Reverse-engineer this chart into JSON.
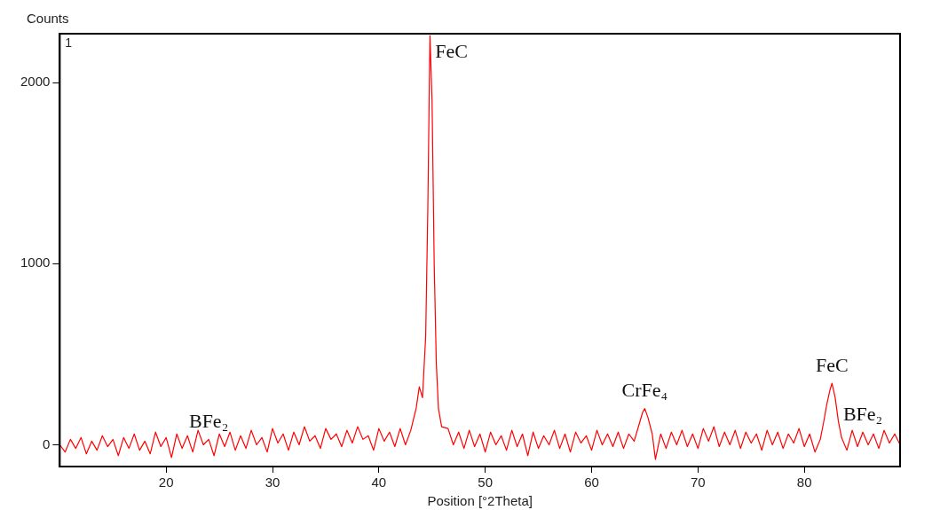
{
  "chart_data": {
    "type": "line",
    "xlabel": "Position [°2Theta]",
    "ylabel": "Counts",
    "annotations": [
      "1",
      {
        "text": "FeC",
        "x": 44.8,
        "y": 2260
      },
      {
        "text": "BFe₂",
        "x": 24,
        "y": 30
      },
      {
        "text": "CrFe₄",
        "x": 65,
        "y": 200
      },
      {
        "text": "FeC",
        "x": 82.6,
        "y": 340
      },
      {
        "text": "BFe₂",
        "x": 85.5,
        "y": 70
      }
    ],
    "xlim": [
      10,
      89
    ],
    "xticks": [
      20,
      30,
      40,
      50,
      60,
      70,
      80
    ],
    "ylim": [
      -120,
      2270
    ],
    "yticks": [
      0,
      1000,
      2000
    ],
    "grid": false,
    "legend": false,
    "marker": "none",
    "line_style": "solid",
    "series": [
      {
        "color": "#ff0000",
        "x": [
          10,
          10.5,
          11,
          11.5,
          12,
          12.5,
          13,
          13.5,
          14,
          14.5,
          15,
          15.5,
          16,
          16.5,
          17,
          17.5,
          18,
          18.5,
          19,
          19.5,
          20,
          20.5,
          21,
          21.5,
          22,
          22.5,
          23,
          23.5,
          24,
          24.5,
          25,
          25.5,
          26,
          26.5,
          27,
          27.5,
          28,
          28.5,
          29,
          29.5,
          30,
          30.5,
          31,
          31.5,
          32,
          32.5,
          33,
          33.5,
          34,
          34.5,
          35,
          35.5,
          36,
          36.5,
          37,
          37.5,
          38,
          38.5,
          39,
          39.5,
          40,
          40.5,
          41,
          41.5,
          42,
          42.5,
          43,
          43.5,
          43.8,
          44.1,
          44.4,
          44.6,
          44.8,
          45,
          45.2,
          45.4,
          45.6,
          45.9,
          46.5,
          47,
          47.5,
          48,
          48.5,
          49,
          49.5,
          50,
          50.5,
          51,
          51.5,
          52,
          52.5,
          53,
          53.5,
          54,
          54.5,
          55,
          55.5,
          56,
          56.5,
          57,
          57.5,
          58,
          58.5,
          59,
          59.5,
          60,
          60.5,
          61,
          61.5,
          62,
          62.5,
          63,
          63.5,
          64,
          64.5,
          64.8,
          65,
          65.3,
          65.7,
          66,
          66.5,
          67,
          67.5,
          68,
          68.5,
          69,
          69.5,
          70,
          70.5,
          71,
          71.5,
          72,
          72.5,
          73,
          73.5,
          74,
          74.5,
          75,
          75.5,
          76,
          76.5,
          77,
          77.5,
          78,
          78.5,
          79,
          79.5,
          80,
          80.5,
          81,
          81.5,
          81.8,
          82.1,
          82.4,
          82.6,
          82.9,
          83.2,
          83.5,
          84,
          84.5,
          85,
          85.5,
          86,
          86.5,
          87,
          87.5,
          88,
          88.5,
          89
        ],
        "values": [
          0,
          -40,
          30,
          -20,
          40,
          -50,
          20,
          -30,
          50,
          -10,
          30,
          -60,
          40,
          -20,
          60,
          -30,
          20,
          -50,
          70,
          -10,
          40,
          -70,
          60,
          -20,
          50,
          -40,
          80,
          0,
          30,
          -60,
          60,
          -10,
          70,
          -30,
          50,
          -20,
          80,
          0,
          40,
          -40,
          90,
          10,
          60,
          -30,
          70,
          0,
          100,
          20,
          50,
          -20,
          90,
          30,
          60,
          -10,
          80,
          10,
          100,
          30,
          50,
          -30,
          90,
          20,
          70,
          -10,
          90,
          0,
          80,
          200,
          320,
          260,
          600,
          1300,
          2260,
          1900,
          1000,
          450,
          200,
          100,
          90,
          0,
          70,
          -20,
          80,
          -10,
          60,
          -40,
          70,
          0,
          50,
          -30,
          80,
          -10,
          60,
          -60,
          70,
          -20,
          50,
          0,
          80,
          -20,
          60,
          -40,
          70,
          10,
          50,
          -30,
          80,
          0,
          60,
          -10,
          70,
          -20,
          60,
          20,
          120,
          180,
          200,
          150,
          60,
          -80,
          60,
          -20,
          70,
          0,
          80,
          -10,
          60,
          -20,
          90,
          20,
          100,
          -10,
          70,
          0,
          80,
          -20,
          70,
          10,
          60,
          -30,
          80,
          0,
          70,
          -20,
          60,
          10,
          90,
          -10,
          60,
          -40,
          30,
          120,
          220,
          300,
          340,
          260,
          130,
          40,
          -30,
          80,
          -10,
          70,
          0,
          60,
          -20,
          80,
          10,
          60,
          0
        ]
      }
    ]
  }
}
